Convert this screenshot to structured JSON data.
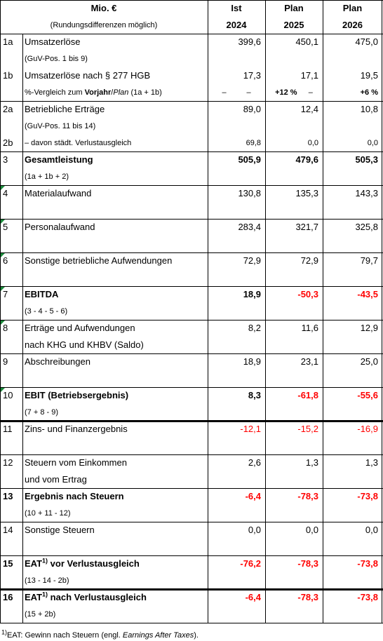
{
  "header": {
    "title": "Mio. €",
    "note": "(Rundungsdifferenzen möglich)",
    "columns": [
      {
        "top": "Ist",
        "bottom": "2024"
      },
      {
        "top": "Plan",
        "bottom": "2025"
      },
      {
        "top": "Plan",
        "bottom": "2026"
      }
    ]
  },
  "rows": [
    {
      "id": "1a",
      "label": "Umsatzerlöse",
      "sub": "(GuV-Pos. 1 bis 9)",
      "values": [
        "399,6",
        "450,1",
        "475,0"
      ]
    },
    {
      "id": "1b",
      "label": "Umsatzerlöse nach § 277 HGB",
      "values": [
        "17,3",
        "17,1",
        "19,5"
      ],
      "compare": {
        "parts": [
          "%-Vergleich zum ",
          "Vorjahr",
          "/",
          "Plan",
          " (1a + 1b)"
        ],
        "cells": [
          [
            "–",
            "–"
          ],
          [
            "+12 %",
            "–"
          ],
          [
            "+6 %"
          ]
        ]
      }
    },
    {
      "id": "2a",
      "label": "Betriebliche Erträge",
      "sub": "(GuV-Pos. 11 bis 14)",
      "values": [
        "89,0",
        "12,4",
        "10,8"
      ]
    },
    {
      "id": "2b",
      "label": "– davon städt. Verlustausgleich",
      "values": [
        "69,8",
        "0,0",
        "0,0"
      ],
      "small": true
    },
    {
      "id": "3",
      "label": "Gesamtleistung",
      "sub": "(1a + 1b + 2)",
      "values": [
        "505,9",
        "479,6",
        "505,3"
      ],
      "bold": true
    },
    {
      "id": "4",
      "label": "Materialaufwand",
      "values": [
        "130,8",
        "135,3",
        "143,3"
      ]
    },
    {
      "id": "5",
      "label": "Personalaufwand",
      "values": [
        "283,4",
        "321,7",
        "325,8"
      ]
    },
    {
      "id": "6",
      "label": "Sonstige betriebliche Aufwendungen",
      "values": [
        "72,9",
        "72,9",
        "79,7"
      ]
    },
    {
      "id": "7",
      "label": "EBITDA",
      "sub": "(3 - 4 - 5 - 6)",
      "values": [
        "18,9",
        "-50,3",
        "-43,5"
      ],
      "bold": true
    },
    {
      "id": "8",
      "label": "Erträge und Aufwendungen",
      "label2": "nach KHG und KHBV (Saldo)",
      "values": [
        "8,2",
        "11,6",
        "12,9"
      ]
    },
    {
      "id": "9",
      "label": "Abschreibungen",
      "values": [
        "18,9",
        "23,1",
        "25,0"
      ]
    },
    {
      "id": "10",
      "label": "EBIT (Betriebsergebnis)",
      "sub": "(7 + 8 - 9)",
      "values": [
        "8,3",
        "-61,8",
        "-55,6"
      ],
      "bold": true
    },
    {
      "id": "11",
      "label": "Zins- und Finanzergebnis",
      "values": [
        "-12,1",
        "-15,2",
        "-16,9"
      ]
    },
    {
      "id": "12",
      "label": "Steuern vom Einkommen",
      "label2": "und vom Ertrag",
      "values": [
        "2,6",
        "1,3",
        "1,3"
      ]
    },
    {
      "id": "13",
      "label": "Ergebnis nach Steuern",
      "sub": "(10 + 11 - 12)",
      "values": [
        "-6,4",
        "-78,3",
        "-73,8"
      ],
      "bold": true,
      "id_bold": true
    },
    {
      "id": "14",
      "label": "Sonstige Steuern",
      "values": [
        "0,0",
        "0,0",
        "0,0"
      ]
    },
    {
      "id": "15",
      "label": "EAT",
      "label_sup": "1)",
      "label_rest": " vor Verlustausgleich",
      "sub": "(13 - 14 - 2b)",
      "values": [
        "-76,2",
        "-78,3",
        "-73,8"
      ],
      "bold": true,
      "id_bold": true
    },
    {
      "id": "16",
      "label": "EAT",
      "label_sup": "1)",
      "label_rest": " nach Verlustausgleich",
      "sub": "(15 + 2b)",
      "values": [
        "-6,4",
        "-78,3",
        "-73,8"
      ],
      "bold": true,
      "id_bold": true
    }
  ],
  "footnote": {
    "sup": "1)",
    "parts": [
      "EAT",
      ": Gewinn nach Steuern (engl. ",
      "Earnings After Taxes",
      ")."
    ]
  }
}
